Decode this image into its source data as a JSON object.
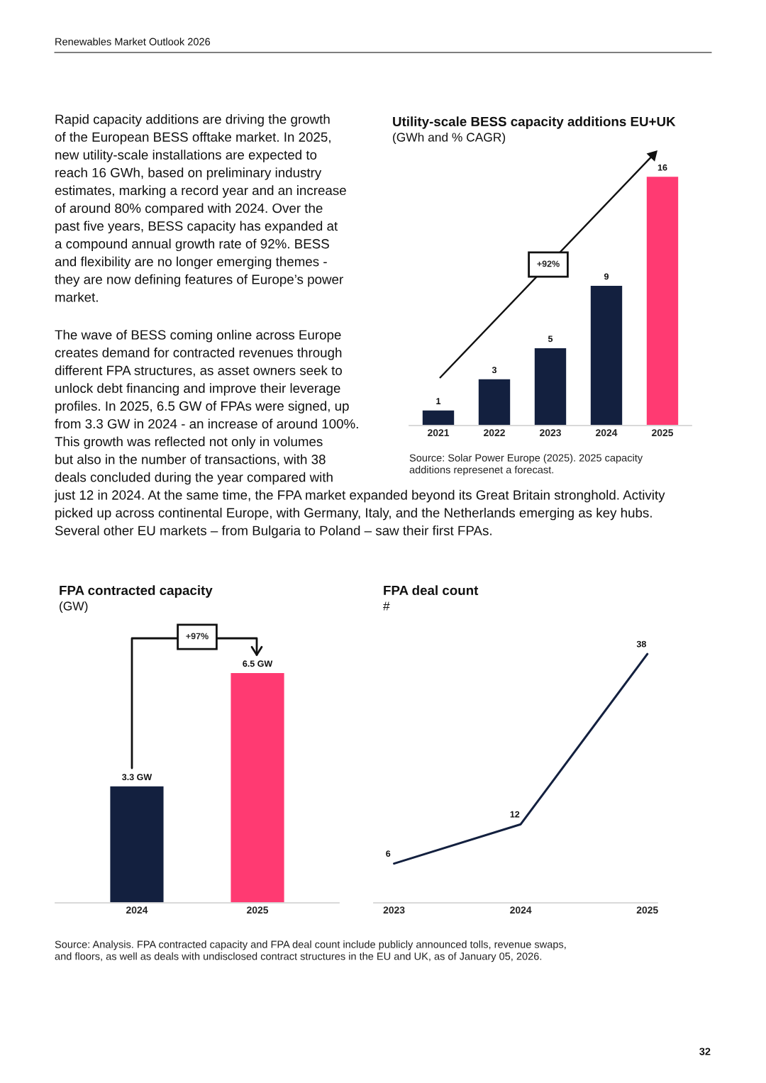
{
  "chart_data": [
    {
      "type": "other",
      "annotations": [
        "Renewables Market Outlook 2026",
        "Rapid capacity additions are driving the growth\nof the European BESS offtake market. In 2025,\nnew utility-scale installations are expected to\nreach 16 GWh, based on preliminary industry\nestimates, marking a record year and an increase\nof around 80% compared with 2024. Over the\npast five years, BESS capacity has expanded at\na compound annual growth rate of 92%. BESS\nand flexibility are no longer emerging themes -\nthey are now defining features of Europe’s power\nmarket.",
        "The wave of BESS coming online across Europe\ncreates demand for contracted revenues through\ndifferent FPA structures, as asset owners seek to\nunlock debt financing and improve their leverage\nprofiles. In 2025, 6.5 GW of FPAs were signed, up\nfrom 3.3 GW in 2024 - an increase of around 100%.\nThis growth was reflected not only in volumes\nbut also in the number of transactions, with 38\ndeals concluded during the year compared with\njust 12 in 2024. At the same time, the FPA market expanded beyond its Great Britain stronghold. Activity\npicked up across continental Europe, with Germany, Italy, and the Netherlands emerging as key hubs.\nSeveral other EU markets – from Bulgaria to Poland – saw their first FPAs.",
        "32"
      ]
    },
    {
      "type": "bar",
      "title": "Utility-scale BESS capacity additions EU+UK",
      "subtitle": "(GWh and % CAGR)",
      "categories": [
        "2021",
        "2022",
        "2023",
        "2024",
        "2025"
      ],
      "values": [
        1,
        3,
        5,
        9,
        16
      ],
      "colors": [
        "#13203f",
        "#13203f",
        "#13203f",
        "#13203f",
        "#ff3a72"
      ],
      "data_labels": true,
      "annotations": [
        "+92%",
        "Source: Solar Power Europe (2025). 2025 capacity\nadditions represenet a forecast."
      ]
    },
    {
      "type": "bar",
      "title": "FPA contracted capacity",
      "subtitle": "(GW)",
      "categories": [
        "2024",
        "2025"
      ],
      "values": [
        3.3,
        6.5
      ],
      "value_labels": [
        "3.3 GW",
        "6.5 GW"
      ],
      "colors": [
        "#13203f",
        "#ff3a72"
      ],
      "annotations": [
        "+97%",
        "Source: Analysis. FPA contracted capacity and FPA deal count include publicly announced tolls, revenue swaps,\nand floors, as well as deals with undisclosed contract structures in the EU and UK, as of January 05, 2026."
      ]
    },
    {
      "type": "line",
      "title": "FPA deal count",
      "subtitle": "#",
      "categories": [
        "2023",
        "2024",
        "2025"
      ],
      "values": [
        6,
        12,
        38
      ],
      "color": "#13203f",
      "data_labels": true
    }
  ]
}
